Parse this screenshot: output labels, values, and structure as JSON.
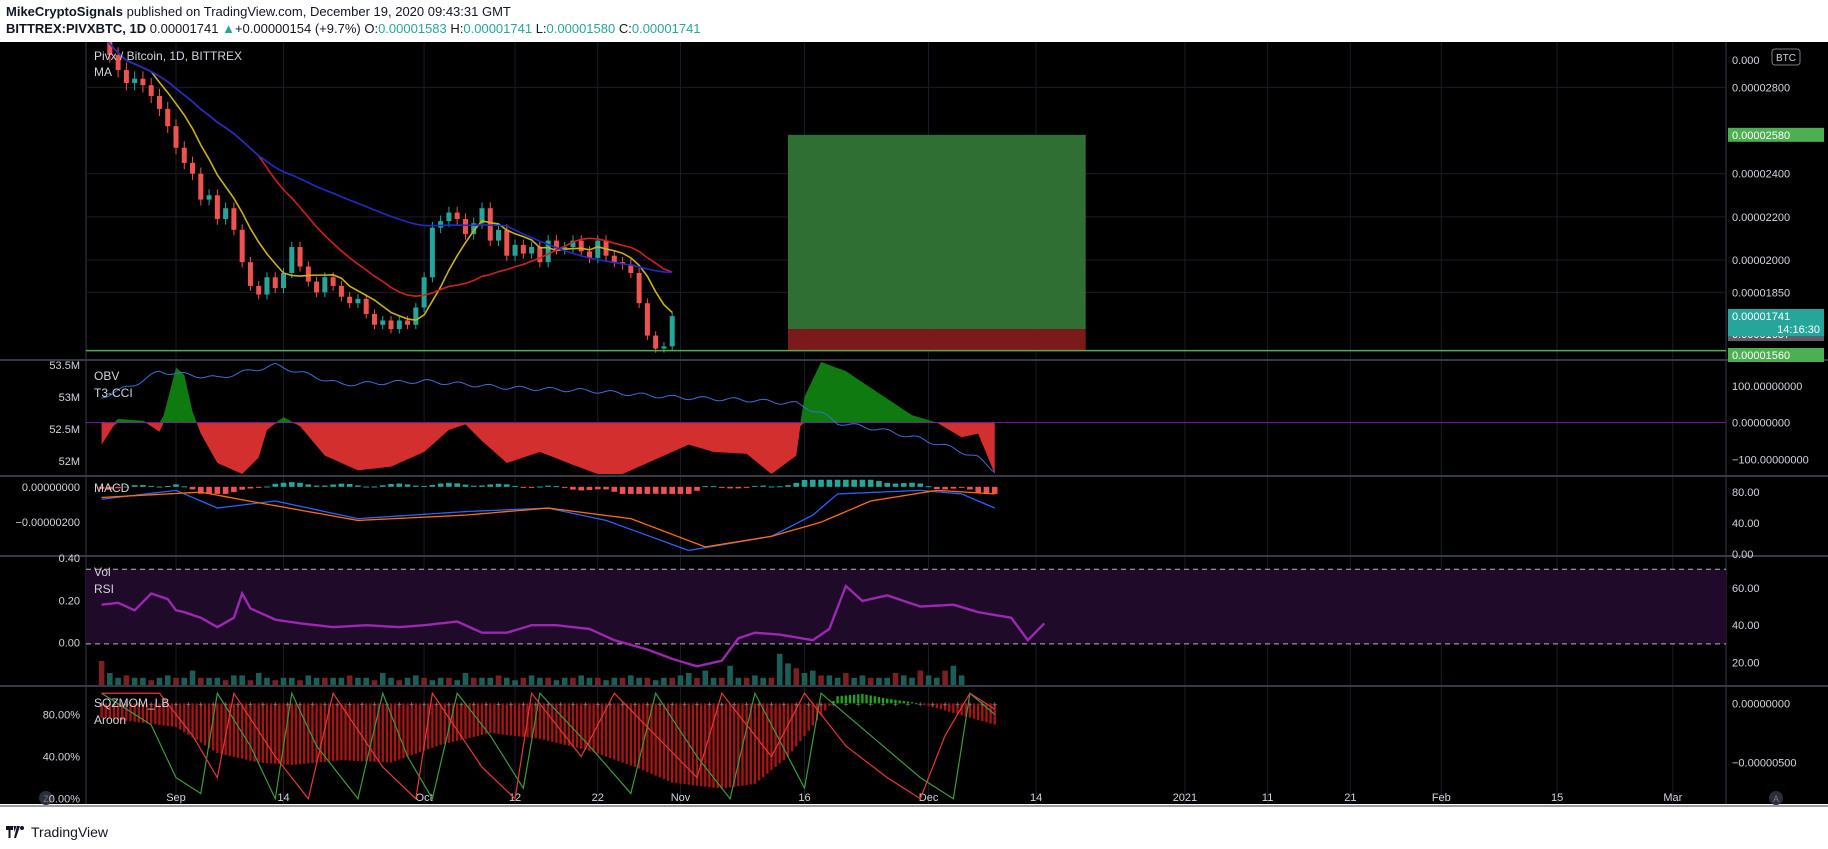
{
  "header": {
    "publisher": "MikeCryptoSignals",
    "published_text": " published on TradingView.com, December 19, 2020 09:43:31 GMT",
    "symbol": "BITTREX:PIVXBTC, 1D",
    "last": "0.00001741",
    "change_prefix": "▲",
    "change": "+0.00000154 (+9.7%)",
    "o_label": "O:",
    "o": "0.00001583",
    "h_label": "H:",
    "h": "0.00001741",
    "l_label": "L:",
    "l": "0.00001580",
    "c_label": "C:",
    "c": "0.00001741"
  },
  "footer": {
    "brand": "TradingView"
  },
  "colors": {
    "background": "#000000",
    "up": "#26a69a",
    "down": "#ef5350",
    "ma_fast": "#c9b11c",
    "ma_mid": "#d21f1f",
    "ma_slow": "#1f2ccc",
    "target_zone": "#2f6f34",
    "stop_zone": "#7a1a1a",
    "support_line": "#4caf50",
    "obv": "#3a6fd8",
    "cci_pos": "#0f7a0f",
    "cci_neg": "#d32f2f",
    "macd": "#2962ff",
    "signal": "#ff6d00",
    "rsi": "#9c27b0",
    "rsi_band": "#1f0a2a",
    "aroon_up": "#3d9b3d",
    "aroon_down": "#e53935",
    "sqz": "#a51515"
  },
  "x_axis": {
    "ticks": [
      {
        "label": "Sep",
        "day": 0
      },
      {
        "label": "14",
        "day": 13
      },
      {
        "label": "Oct",
        "day": 30
      },
      {
        "label": "12",
        "day": 41
      },
      {
        "label": "22",
        "day": 51
      },
      {
        "label": "Nov",
        "day": 61
      },
      {
        "label": "16",
        "day": 76
      },
      {
        "label": "Dec",
        "day": 91
      },
      {
        "label": "14",
        "day": 104
      },
      {
        "label": "2021",
        "day": 122
      },
      {
        "label": "11",
        "day": 132
      },
      {
        "label": "21",
        "day": 142
      },
      {
        "label": "Feb",
        "day": 153
      },
      {
        "label": "15",
        "day": 167
      },
      {
        "label": "Mar",
        "day": 181
      }
    ],
    "left_badge": "Z",
    "right_badge": "A"
  },
  "chart_data": [
    {
      "type": "candlestick",
      "title": "Pivx / Bitcoin, 1D, BITTREX",
      "subtitle": "MA",
      "currency_badge": "BTC",
      "ylim": [
        1.56e-05,
        3.01e-05
      ],
      "y_ticks": [
        {
          "value": 2.8e-05,
          "label": "0.00002800"
        },
        {
          "value": 2.4e-05,
          "label": "0.00002400"
        },
        {
          "value": 2.2e-05,
          "label": "0.00002200"
        },
        {
          "value": 2e-05,
          "label": "0.00002000"
        },
        {
          "value": 1.85e-05,
          "label": "0.00001850"
        }
      ],
      "top_tick_label": "0.000",
      "price_tags": [
        {
          "value": 2.58e-05,
          "label": "0.00002580",
          "style": "green"
        },
        {
          "value": 1.741e-05,
          "label": "0.00001741",
          "style": "teal"
        },
        {
          "value": 1.657e-05,
          "label": "0.00001657",
          "style": "gray"
        },
        {
          "value": 1.56e-05,
          "label": "0.00001560",
          "style": "green"
        }
      ],
      "countdown": "14:16:30",
      "countdown_value": 1.68e-05,
      "first_day": -9,
      "close": [
        3.05e-05,
        2.95e-05,
        2.88e-05,
        2.82e-05,
        2.84e-05,
        2.81e-05,
        2.76e-05,
        2.7e-05,
        2.62e-05,
        2.52e-05,
        2.45e-05,
        2.4e-05,
        2.28e-05,
        2.3e-05,
        2.19e-05,
        2.24e-05,
        2.14e-05,
        1.99e-05,
        1.88e-05,
        1.84e-05,
        1.92e-05,
        1.87e-05,
        1.94e-05,
        2.06e-05,
        1.97e-05,
        1.9e-05,
        1.85e-05,
        1.92e-05,
        1.88e-05,
        1.83e-05,
        1.8e-05,
        1.82e-05,
        1.75e-05,
        1.7e-05,
        1.72e-05,
        1.68e-05,
        1.72e-05,
        1.7e-05,
        1.78e-05,
        1.92e-05,
        2.15e-05,
        2.18e-05,
        2.22e-05,
        2.19e-05,
        2.12e-05,
        2.17e-05,
        2.24e-05,
        2.09e-05,
        2.14e-05,
        2.02e-05,
        2.07e-05,
        2.03e-05,
        2.06e-05,
        1.99e-05,
        2.09e-05,
        2.05e-05,
        2.06e-05,
        2.09e-05,
        2.04e-05,
        2.01e-05,
        2.09e-05,
        2.02e-05,
        1.99e-05,
        1.98e-05,
        1.94e-05,
        1.8e-05,
        1.65e-05,
        1.59e-05,
        1.6e-05,
        1.74e-05
      ],
      "moving_averages": [
        {
          "name": "fast",
          "period": 7
        },
        {
          "name": "mid",
          "period": 20
        },
        {
          "name": "slow",
          "period": 50
        }
      ],
      "position": {
        "start_day": 74,
        "end_day": 110,
        "target": 2.58e-05,
        "entry": 1.68e-05,
        "stop": 1.58e-05
      },
      "support": 1.58e-05
    },
    {
      "type": "area",
      "labels": [
        "OBV",
        "T3-CCI"
      ],
      "left_ticks": [
        {
          "value": 53.5,
          "label": "53.5M"
        },
        {
          "value": 53,
          "label": "53M"
        },
        {
          "value": 52.5,
          "label": "52.5M"
        },
        {
          "value": 52,
          "label": "52M"
        }
      ],
      "left_ylim": [
        51.8,
        53.55
      ],
      "right_ticks": [
        {
          "value": 100,
          "label": "100.00000000"
        },
        {
          "value": 0,
          "label": "0.00000000"
        },
        {
          "value": -100,
          "label": "−100.00000000"
        }
      ],
      "right_ylim": [
        -140,
        165
      ],
      "obv_knots": [
        [
          -9,
          53.0
        ],
        [
          -5,
          53.2
        ],
        [
          -2,
          53.4
        ],
        [
          5,
          53.3
        ],
        [
          12,
          53.5
        ],
        [
          20,
          53.2
        ],
        [
          30,
          53.25
        ],
        [
          40,
          53.15
        ],
        [
          50,
          53.1
        ],
        [
          60,
          53.0
        ],
        [
          70,
          52.95
        ],
        [
          75,
          52.9
        ],
        [
          78,
          52.75
        ],
        [
          80,
          52.6
        ],
        [
          85,
          52.5
        ],
        [
          90,
          52.35
        ],
        [
          94,
          52.2
        ],
        [
          97,
          52.05
        ],
        [
          99,
          51.85
        ]
      ],
      "cci_knots": [
        [
          -9,
          -60
        ],
        [
          -7,
          10
        ],
        [
          -4,
          5
        ],
        [
          -2,
          -25
        ],
        [
          0,
          150
        ],
        [
          1,
          130
        ],
        [
          2,
          30
        ],
        [
          3,
          -30
        ],
        [
          5,
          -110
        ],
        [
          8,
          -140
        ],
        [
          10,
          -95
        ],
        [
          11,
          -20
        ],
        [
          13,
          15
        ],
        [
          15,
          -10
        ],
        [
          18,
          -90
        ],
        [
          22,
          -130
        ],
        [
          26,
          -120
        ],
        [
          30,
          -80
        ],
        [
          33,
          -20
        ],
        [
          35,
          -5
        ],
        [
          37,
          -50
        ],
        [
          40,
          -110
        ],
        [
          44,
          -80
        ],
        [
          48,
          -115
        ],
        [
          51,
          -140
        ],
        [
          54,
          -140
        ],
        [
          58,
          -100
        ],
        [
          62,
          -60
        ],
        [
          65,
          -80
        ],
        [
          69,
          -85
        ],
        [
          72,
          -140
        ],
        [
          75,
          -90
        ],
        [
          76,
          70
        ],
        [
          78,
          165
        ],
        [
          81,
          140
        ],
        [
          85,
          80
        ],
        [
          89,
          20
        ],
        [
          92,
          0
        ],
        [
          95,
          -40
        ],
        [
          97,
          -30
        ],
        [
          99,
          -140
        ]
      ]
    },
    {
      "type": "line",
      "labels": [
        "MACD"
      ],
      "left_ticks": [
        {
          "value": 0,
          "label": "0.00000000"
        },
        {
          "value": -2e-06,
          "label": "−0.00000200"
        }
      ],
      "left_ylim": [
        -3.8e-06,
        5e-07
      ],
      "right_ticks": [
        {
          "value": 80,
          "label": "80.00"
        },
        {
          "value": 40,
          "label": "40.00"
        },
        {
          "value": 0,
          "label": "0.00"
        }
      ],
      "right_ylim": [
        0,
        98
      ],
      "macd_knots": [
        [
          -9,
          -7e-07
        ],
        [
          0,
          -2e-07
        ],
        [
          5,
          -1.2e-06
        ],
        [
          12,
          -8e-07
        ],
        [
          22,
          -1.8e-06
        ],
        [
          35,
          -1.4e-06
        ],
        [
          45,
          -1.2e-06
        ],
        [
          52,
          -1.9e-06
        ],
        [
          62,
          -3.6e-06
        ],
        [
          72,
          -2.8e-06
        ],
        [
          77,
          -1.6e-06
        ],
        [
          80,
          -4e-07
        ],
        [
          90,
          -2e-07
        ],
        [
          95,
          -4e-07
        ],
        [
          99,
          -1.2e-06
        ]
      ],
      "signal_knots": [
        [
          -9,
          -6e-07
        ],
        [
          3,
          -3e-07
        ],
        [
          10,
          -9e-07
        ],
        [
          22,
          -1.9e-06
        ],
        [
          35,
          -1.6e-06
        ],
        [
          45,
          -1.2e-06
        ],
        [
          55,
          -1.8e-06
        ],
        [
          64,
          -3.4e-06
        ],
        [
          72,
          -2.8e-06
        ],
        [
          78,
          -2e-06
        ],
        [
          84,
          -8e-07
        ],
        [
          92,
          -2e-07
        ],
        [
          99,
          -4e-07
        ]
      ]
    },
    {
      "type": "line",
      "labels": [
        "Vol",
        "RSI"
      ],
      "left_ticks": [
        {
          "value": 0.4,
          "label": "0.40"
        },
        {
          "value": 0.2,
          "label": "0.20"
        },
        {
          "value": 0,
          "label": "0.00"
        }
      ],
      "left_ylim": [
        -0.2,
        0.4
      ],
      "right_ticks": [
        {
          "value": 60,
          "label": "60.00"
        },
        {
          "value": 40,
          "label": "40.00"
        },
        {
          "value": 20,
          "label": "20.00"
        }
      ],
      "right_ylim": [
        8,
        76
      ],
      "rsi_band": [
        30,
        70
      ],
      "rsi_knots": [
        [
          -9,
          51
        ],
        [
          -7,
          52
        ],
        [
          -5,
          48
        ],
        [
          -3,
          57
        ],
        [
          -1,
          54
        ],
        [
          0,
          48
        ],
        [
          1,
          47
        ],
        [
          3,
          44
        ],
        [
          5,
          39
        ],
        [
          7,
          44
        ],
        [
          8,
          57
        ],
        [
          9,
          49
        ],
        [
          12,
          43
        ],
        [
          15,
          41
        ],
        [
          19,
          39
        ],
        [
          23,
          40
        ],
        [
          27,
          39
        ],
        [
          30,
          40
        ],
        [
          34,
          42
        ],
        [
          37,
          36
        ],
        [
          40,
          36
        ],
        [
          43,
          40
        ],
        [
          46,
          40
        ],
        [
          50,
          38
        ],
        [
          53,
          32
        ],
        [
          57,
          27
        ],
        [
          60,
          22
        ],
        [
          63,
          18
        ],
        [
          66,
          21
        ],
        [
          68,
          33
        ],
        [
          70,
          36
        ],
        [
          73,
          35
        ],
        [
          77,
          32
        ],
        [
          79,
          38
        ],
        [
          81,
          61
        ],
        [
          83,
          53
        ],
        [
          86,
          56
        ],
        [
          90,
          50
        ],
        [
          94,
          51
        ],
        [
          97,
          47
        ],
        [
          101,
          44
        ],
        [
          103,
          32
        ],
        [
          105,
          41
        ]
      ],
      "volume": [
        1.0,
        0.5,
        0.3,
        0.4,
        0.3,
        0.3,
        0.2,
        0.3,
        0.4,
        0.3,
        0.3,
        0.6,
        0.3,
        0.3,
        0.3,
        0.2,
        0.4,
        0.4,
        0.2,
        0.5,
        0.3,
        0.2,
        0.3,
        0.3,
        0.2,
        0.4,
        0.3,
        0.3,
        0.3,
        0.3,
        0.4,
        0.3,
        0.3,
        0.2,
        0.5,
        0.3,
        0.2,
        0.3,
        0.4,
        0.3,
        0.2,
        0.3,
        0.3,
        0.2,
        0.5,
        0.3,
        0.3,
        0.3,
        0.4,
        0.3,
        0.2,
        0.3,
        0.4,
        0.3,
        0.3,
        0.2,
        0.3,
        0.3,
        0.4,
        0.3,
        0.3,
        0.2,
        0.3,
        0.3,
        0.4,
        0.3,
        0.3,
        0.2,
        0.3,
        0.3,
        0.4,
        0.5,
        0.3,
        0.6,
        0.3,
        0.3,
        0.8,
        0.3,
        0.3,
        0.4,
        0.3,
        0.3,
        1.3,
        0.9,
        0.7,
        0.5,
        0.6,
        0.4,
        0.4,
        0.3,
        0.5,
        0.3,
        0.4,
        0.3,
        0.3,
        0.3,
        0.5,
        0.4,
        0.3,
        0.6,
        0.4,
        0.3,
        0.6,
        0.8,
        0.4
      ],
      "volume_ylim": [
        0,
        2.0
      ]
    },
    {
      "type": "bar",
      "labels": [
        "SQZMOM_LB",
        "Aroon"
      ],
      "left_ticks": [
        {
          "value": 80,
          "label": "80.00%"
        },
        {
          "value": 40,
          "label": "40.00%"
        },
        {
          "value": 0,
          "label": "0.00%"
        }
      ],
      "left_ylim": [
        -5,
        105
      ],
      "right_ticks": [
        {
          "value": 0,
          "label": "0.00000000"
        },
        {
          "value": -5e-06,
          "label": "−0.00000500"
        }
      ],
      "right_ylim": [
        -8.5e-06,
        1.3e-06
      ],
      "sqz_knots": [
        [
          -9,
          -1.2e-06
        ],
        [
          0,
          -2e-06
        ],
        [
          5,
          -4.2e-06
        ],
        [
          10,
          -5e-06
        ],
        [
          14,
          -5.2e-06
        ],
        [
          20,
          -4.8e-06
        ],
        [
          26,
          -5e-06
        ],
        [
          32,
          -3.5e-06
        ],
        [
          38,
          -2.5e-06
        ],
        [
          44,
          -3e-06
        ],
        [
          50,
          -4e-06
        ],
        [
          56,
          -5.5e-06
        ],
        [
          60,
          -6.7e-06
        ],
        [
          66,
          -7.2e-06
        ],
        [
          70,
          -6.8e-06
        ],
        [
          74,
          -4.5e-06
        ],
        [
          78,
          -1e-06
        ],
        [
          80,
          6e-07
        ],
        [
          83,
          8e-07
        ],
        [
          86,
          4e-07
        ],
        [
          89,
          1e-07
        ],
        [
          92,
          -4e-07
        ],
        [
          96,
          -1.2e-06
        ],
        [
          99,
          -1.8e-06
        ]
      ],
      "aroon_up_knots": [
        [
          -9,
          100
        ],
        [
          -3,
          70
        ],
        [
          0,
          20
        ],
        [
          3,
          5
        ],
        [
          5,
          100
        ],
        [
          9,
          50
        ],
        [
          12,
          0
        ],
        [
          14,
          100
        ],
        [
          17,
          50
        ],
        [
          22,
          0
        ],
        [
          25,
          100
        ],
        [
          28,
          40
        ],
        [
          31,
          0
        ],
        [
          34,
          100
        ],
        [
          38,
          60
        ],
        [
          42,
          10
        ],
        [
          44,
          100
        ],
        [
          50,
          50
        ],
        [
          55,
          5
        ],
        [
          58,
          100
        ],
        [
          63,
          40
        ],
        [
          67,
          0
        ],
        [
          70,
          100
        ],
        [
          76,
          10
        ],
        [
          78,
          100
        ],
        [
          84,
          60
        ],
        [
          90,
          20
        ],
        [
          94,
          0
        ],
        [
          96,
          100
        ],
        [
          99,
          80
        ]
      ],
      "aroon_down_knots": [
        [
          -9,
          100
        ],
        [
          -2,
          100
        ],
        [
          2,
          60
        ],
        [
          5,
          20
        ],
        [
          7,
          100
        ],
        [
          12,
          40
        ],
        [
          16,
          0
        ],
        [
          19,
          100
        ],
        [
          25,
          30
        ],
        [
          29,
          0
        ],
        [
          31,
          100
        ],
        [
          37,
          30
        ],
        [
          41,
          0
        ],
        [
          43,
          100
        ],
        [
          49,
          40
        ],
        [
          53,
          100
        ],
        [
          58,
          60
        ],
        [
          63,
          20
        ],
        [
          66,
          100
        ],
        [
          72,
          40
        ],
        [
          76,
          100
        ],
        [
          81,
          50
        ],
        [
          86,
          20
        ],
        [
          90,
          0
        ],
        [
          93,
          60
        ],
        [
          96,
          100
        ],
        [
          99,
          85
        ]
      ]
    }
  ]
}
